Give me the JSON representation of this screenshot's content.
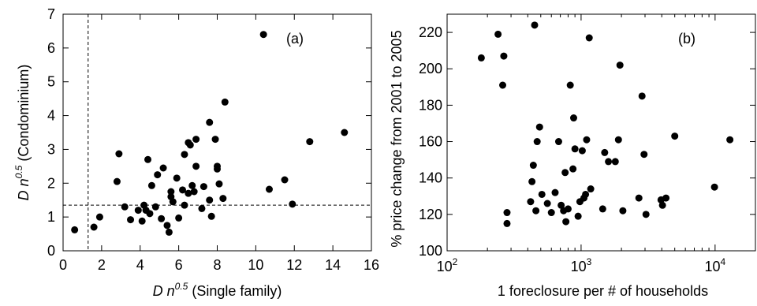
{
  "chart_data": [
    {
      "type": "scatter",
      "panel_label": "(a)",
      "xlabel_base": "D n",
      "xlabel_exp": "0.5",
      "xlabel_tail": " (Single family)",
      "ylabel_base": "D n",
      "ylabel_exp": "0.5",
      "ylabel_tail": " (Condominium)",
      "xlim": [
        0,
        16
      ],
      "ylim": [
        0,
        7
      ],
      "xticks": [
        "0",
        "2",
        "4",
        "6",
        "8",
        "10",
        "12",
        "14",
        "16"
      ],
      "yticks": [
        "0",
        "1",
        "2",
        "3",
        "4",
        "5",
        "6",
        "7"
      ],
      "vline_x": 1.3,
      "hline_y": 1.35,
      "points": [
        [
          0.6,
          0.62
        ],
        [
          1.6,
          0.7
        ],
        [
          1.9,
          1.0
        ],
        [
          2.8,
          2.05
        ],
        [
          2.9,
          2.87
        ],
        [
          3.2,
          1.3
        ],
        [
          3.5,
          0.92
        ],
        [
          3.9,
          1.2
        ],
        [
          4.1,
          0.88
        ],
        [
          4.3,
          1.2
        ],
        [
          4.2,
          1.35
        ],
        [
          4.5,
          1.1
        ],
        [
          4.4,
          2.7
        ],
        [
          4.6,
          1.93
        ],
        [
          4.8,
          1.3
        ],
        [
          4.9,
          2.25
        ],
        [
          5.2,
          2.45
        ],
        [
          5.1,
          0.95
        ],
        [
          5.4,
          0.75
        ],
        [
          5.5,
          0.55
        ],
        [
          5.6,
          1.75
        ],
        [
          5.6,
          1.6
        ],
        [
          5.7,
          1.45
        ],
        [
          5.9,
          2.15
        ],
        [
          6.0,
          0.97
        ],
        [
          6.2,
          1.8
        ],
        [
          6.3,
          2.85
        ],
        [
          6.3,
          1.35
        ],
        [
          6.5,
          3.2
        ],
        [
          6.5,
          1.7
        ],
        [
          6.6,
          3.13
        ],
        [
          6.7,
          1.93
        ],
        [
          6.8,
          1.75
        ],
        [
          6.9,
          2.5
        ],
        [
          6.9,
          3.3
        ],
        [
          7.2,
          1.25
        ],
        [
          7.3,
          1.9
        ],
        [
          7.6,
          3.8
        ],
        [
          7.6,
          1.5
        ],
        [
          7.7,
          1.02
        ],
        [
          7.9,
          3.3
        ],
        [
          8.0,
          2.5
        ],
        [
          8.0,
          2.42
        ],
        [
          8.1,
          1.98
        ],
        [
          8.3,
          1.55
        ],
        [
          8.4,
          4.4
        ],
        [
          10.4,
          6.4
        ],
        [
          10.7,
          1.82
        ],
        [
          11.5,
          2.1
        ],
        [
          11.9,
          1.38
        ],
        [
          12.8,
          3.23
        ],
        [
          14.6,
          3.5
        ]
      ]
    },
    {
      "type": "scatter",
      "panel_label": "(b)",
      "xlabel": "1 foreclosure per # of households",
      "ylabel": "% price change from 2001 to 2005",
      "xscale": "log",
      "xlim": [
        100,
        20000
      ],
      "ylim": [
        100,
        230
      ],
      "xticks": [
        {
          "value": 100,
          "base": "10",
          "exp": "2"
        },
        {
          "value": 1000,
          "base": "10",
          "exp": "3"
        },
        {
          "value": 10000,
          "base": "10",
          "exp": "4"
        }
      ],
      "yticks": [
        "100",
        "120",
        "140",
        "160",
        "180",
        "200",
        "220"
      ],
      "points": [
        [
          180,
          206
        ],
        [
          240,
          219
        ],
        [
          260,
          191
        ],
        [
          265,
          207
        ],
        [
          280,
          115
        ],
        [
          280,
          121
        ],
        [
          420,
          127
        ],
        [
          430,
          138
        ],
        [
          440,
          147
        ],
        [
          450,
          224
        ],
        [
          460,
          122
        ],
        [
          470,
          160
        ],
        [
          490,
          168
        ],
        [
          510,
          131
        ],
        [
          560,
          126
        ],
        [
          600,
          121
        ],
        [
          640,
          132
        ],
        [
          680,
          160
        ],
        [
          710,
          125
        ],
        [
          740,
          122
        ],
        [
          760,
          143
        ],
        [
          770,
          116
        ],
        [
          800,
          123
        ],
        [
          830,
          191
        ],
        [
          870,
          145
        ],
        [
          880,
          173
        ],
        [
          900,
          156
        ],
        [
          950,
          119
        ],
        [
          980,
          127
        ],
        [
          1020,
          155
        ],
        [
          1050,
          129
        ],
        [
          1080,
          131
        ],
        [
          1100,
          161
        ],
        [
          1150,
          217
        ],
        [
          1180,
          134
        ],
        [
          1450,
          123
        ],
        [
          1500,
          154
        ],
        [
          1600,
          149
        ],
        [
          1800,
          149
        ],
        [
          1900,
          161
        ],
        [
          1950,
          202
        ],
        [
          2050,
          122
        ],
        [
          2700,
          129
        ],
        [
          2850,
          185
        ],
        [
          2950,
          153
        ],
        [
          3050,
          120
        ],
        [
          3950,
          128
        ],
        [
          4050,
          125
        ],
        [
          4300,
          129
        ],
        [
          5000,
          163
        ],
        [
          9900,
          135
        ],
        [
          12900,
          161
        ]
      ]
    }
  ]
}
